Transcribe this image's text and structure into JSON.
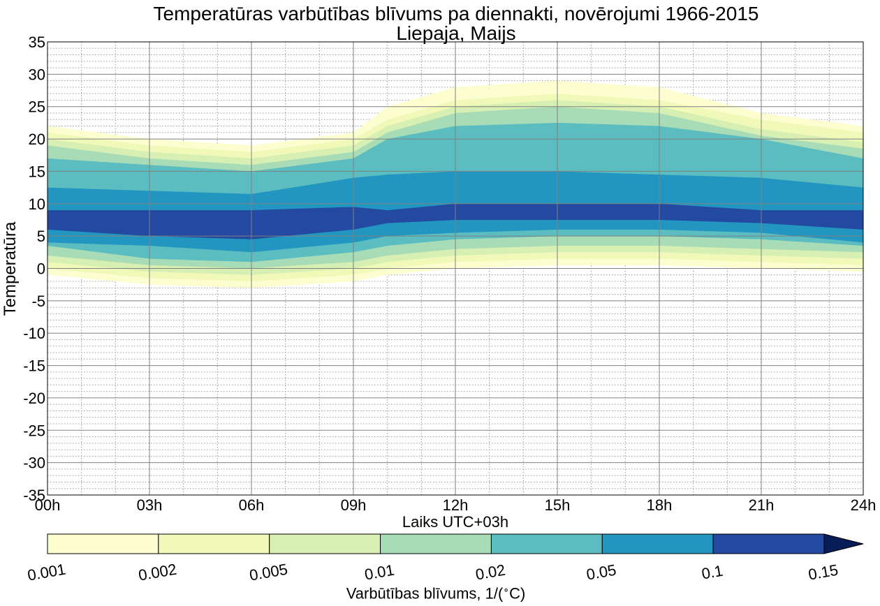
{
  "chart_data": {
    "type": "heatmap",
    "subtype": "filled-contour",
    "title": "Temperatūras varbūtības blīvums pa diennakti, novērojumi 1966-2015",
    "subtitle": "Liepaja, Maijs",
    "xlabel": "Laiks UTC+03h",
    "ylabel": "Temperatūra",
    "x_ticks": [
      "00h",
      "03h",
      "06h",
      "09h",
      "12h",
      "15h",
      "18h",
      "21h",
      "24h"
    ],
    "y_ticks": [
      "35",
      "30",
      "25",
      "20",
      "15",
      "10",
      "5",
      "0",
      "-5",
      "-10",
      "-15",
      "-20",
      "-25",
      "-30",
      "-35"
    ],
    "xlim": [
      0,
      24
    ],
    "ylim": [
      -35,
      35
    ],
    "grid": "major solid, minor dotted",
    "colorbar": {
      "label": "Varbūtības blīvums, 1/(°C)",
      "label_parts": [
        "Varbūtības blīvums, 1/(",
        "∘",
        "C)"
      ],
      "tick_labels": [
        "0.001",
        "0.002",
        "0.005",
        "0.01",
        "0.02",
        "0.05",
        "0.1",
        "0.15"
      ],
      "colors": [
        "#fcfed0",
        "#f0f9b8",
        "#d7efb3",
        "#a8dcb6",
        "#5cbdc0",
        "#2296c0",
        "#234aa0",
        "#081d58"
      ],
      "extend": "max"
    },
    "levels": [
      0.001,
      0.002,
      0.005,
      0.01,
      0.02,
      0.05,
      0.1
    ],
    "contour_x": [
      0,
      3,
      6,
      9,
      10,
      12,
      15,
      18,
      21,
      24
    ],
    "bands": [
      {
        "level": 0.001,
        "upper": [
          22,
          20,
          19,
          21,
          25,
          28,
          29,
          28,
          24,
          22
        ],
        "lower": [
          -1,
          -2.5,
          -3,
          -2,
          -1,
          0,
          0.5,
          0.5,
          0,
          -0.5
        ]
      },
      {
        "level": 0.002,
        "upper": [
          21,
          19,
          18,
          20,
          23,
          26,
          27,
          26,
          23,
          21
        ],
        "lower": [
          0,
          -1.5,
          -2,
          -1,
          0,
          1,
          1.5,
          1.5,
          1,
          0.5
        ]
      },
      {
        "level": 0.005,
        "upper": [
          20,
          18,
          17,
          19,
          22,
          25,
          26,
          25,
          21.5,
          19.5
        ],
        "lower": [
          1,
          -0.5,
          -1,
          0,
          1,
          2,
          2.5,
          2.5,
          2,
          1.5
        ]
      },
      {
        "level": 0.01,
        "upper": [
          19,
          17,
          16,
          18,
          21,
          24,
          25,
          24,
          20.5,
          18.5
        ],
        "lower": [
          2,
          0.5,
          0,
          1,
          2,
          3,
          3.5,
          3.5,
          3,
          2.5
        ]
      },
      {
        "level": 0.02,
        "upper": [
          17,
          16,
          15,
          17,
          20,
          22,
          22.5,
          22,
          20,
          17
        ],
        "lower": [
          3.5,
          1.5,
          1,
          2.5,
          3.5,
          4.5,
          5,
          5,
          4.5,
          3.5
        ]
      },
      {
        "level": 0.05,
        "upper": [
          12.5,
          12,
          11.5,
          14,
          14.5,
          15,
          15,
          14.5,
          14,
          12.5
        ],
        "lower": [
          4,
          3.5,
          2.5,
          4,
          5,
          5.5,
          6,
          6,
          5.5,
          4
        ]
      },
      {
        "level": 0.1,
        "upper": [
          9,
          9,
          9,
          9.5,
          9,
          10,
          10,
          10,
          9,
          9
        ],
        "lower": [
          6,
          5,
          4.5,
          6,
          7,
          7.5,
          7.5,
          7.5,
          7,
          6
        ]
      }
    ]
  }
}
